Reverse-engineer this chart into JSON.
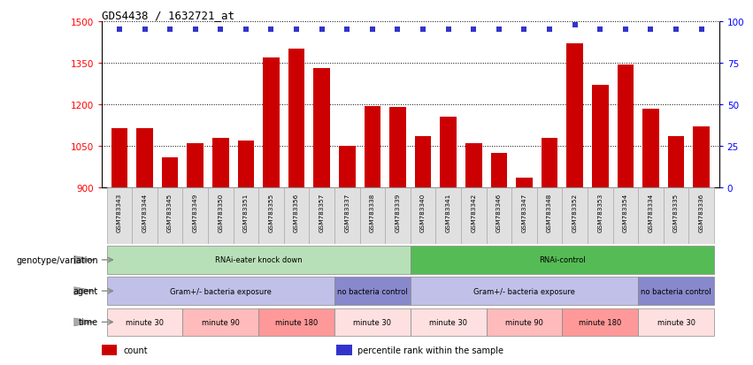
{
  "title": "GDS4438 / 1632721_at",
  "samples": [
    "GSM783343",
    "GSM783344",
    "GSM783345",
    "GSM783349",
    "GSM783350",
    "GSM783351",
    "GSM783355",
    "GSM783356",
    "GSM783357",
    "GSM783337",
    "GSM783338",
    "GSM783339",
    "GSM783340",
    "GSM783341",
    "GSM783342",
    "GSM783346",
    "GSM783347",
    "GSM783348",
    "GSM783352",
    "GSM783353",
    "GSM783354",
    "GSM783334",
    "GSM783335",
    "GSM783336"
  ],
  "counts": [
    1115,
    1115,
    1010,
    1060,
    1080,
    1070,
    1370,
    1400,
    1330,
    1050,
    1195,
    1190,
    1085,
    1155,
    1060,
    1025,
    935,
    1080,
    1420,
    1270,
    1345,
    1185,
    1085,
    1120
  ],
  "percentiles": [
    95,
    95,
    95,
    95,
    95,
    95,
    95,
    95,
    95,
    95,
    95,
    95,
    95,
    95,
    95,
    95,
    95,
    95,
    98,
    95,
    95,
    95,
    95,
    95
  ],
  "bar_color": "#cc0000",
  "dot_color": "#3333cc",
  "ylim_left": [
    900,
    1500
  ],
  "ylim_right": [
    0,
    100
  ],
  "yticks_left": [
    900,
    1050,
    1200,
    1350,
    1500
  ],
  "yticks_right": [
    0,
    25,
    50,
    75,
    100
  ],
  "grid_values": [
    1050,
    1200,
    1350
  ],
  "annotation_rows": [
    {
      "label": "genotype/variation",
      "segments": [
        {
          "text": "RNAi-eater knock down",
          "start": 0,
          "end": 12,
          "color": "#b8e0b8"
        },
        {
          "text": "RNAi-control",
          "start": 12,
          "end": 24,
          "color": "#55bb55"
        }
      ]
    },
    {
      "label": "agent",
      "segments": [
        {
          "text": "Gram+/- bacteria exposure",
          "start": 0,
          "end": 9,
          "color": "#c0c0e8"
        },
        {
          "text": "no bacteria control",
          "start": 9,
          "end": 12,
          "color": "#8888cc"
        },
        {
          "text": "Gram+/- bacteria exposure",
          "start": 12,
          "end": 21,
          "color": "#c0c0e8"
        },
        {
          "text": "no bacteria control",
          "start": 21,
          "end": 24,
          "color": "#8888cc"
        }
      ]
    },
    {
      "label": "time",
      "segments": [
        {
          "text": "minute 30",
          "start": 0,
          "end": 3,
          "color": "#ffe0e0"
        },
        {
          "text": "minute 90",
          "start": 3,
          "end": 6,
          "color": "#ffbbbb"
        },
        {
          "text": "minute 180",
          "start": 6,
          "end": 9,
          "color": "#ff9999"
        },
        {
          "text": "minute 30",
          "start": 9,
          "end": 12,
          "color": "#ffe0e0"
        },
        {
          "text": "minute 30",
          "start": 12,
          "end": 15,
          "color": "#ffe0e0"
        },
        {
          "text": "minute 90",
          "start": 15,
          "end": 18,
          "color": "#ffbbbb"
        },
        {
          "text": "minute 180",
          "start": 18,
          "end": 21,
          "color": "#ff9999"
        },
        {
          "text": "minute 30",
          "start": 21,
          "end": 24,
          "color": "#ffe0e0"
        }
      ]
    }
  ],
  "legend": [
    {
      "color": "#cc0000",
      "label": "count"
    },
    {
      "color": "#3333cc",
      "label": "percentile rank within the sample"
    }
  ]
}
